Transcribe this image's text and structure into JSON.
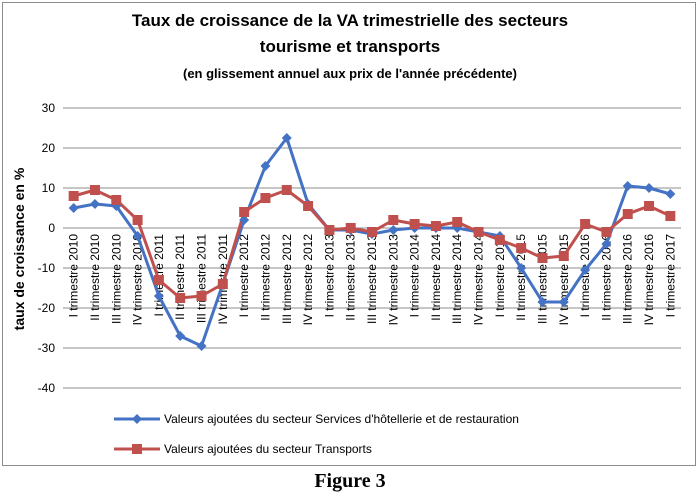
{
  "caption": "Figure 3",
  "chart_data": {
    "type": "line",
    "title": "Taux de croissance de la VA trimestrielle des secteurs",
    "title_line2": "tourisme et transports",
    "subtitle": "(en glissement annuel aux prix de l'année précédente)",
    "xlabel": "",
    "ylabel": "taux de croissance en %",
    "ylim": [
      -40,
      30
    ],
    "yticks": [
      30,
      20,
      10,
      0,
      -10,
      -20,
      -30,
      -40
    ],
    "grid": true,
    "legend_position": "bottom",
    "categories": [
      "I trimestre 2010",
      "II trimestre 2010",
      "III trimestre 2010",
      "IV trimestre 2010",
      "I trimestre 2011",
      "II trimestre 2011",
      "III trimestre 2011",
      "IV trimestre 2011",
      "I trimestre 2012",
      "II trimestre 2012",
      "III trimestre 2012",
      "IV trimestre 2012",
      "I trimestre 2013",
      "II trimestre 2013",
      "III trimestre 2013",
      "IV trimestre 2013",
      "I trimestre 2014",
      "II trimestre 2014",
      "III trimestre 2014",
      "IV trimestre 2014",
      "I trimestre 2015",
      "II trimestre 2015",
      "III trimestre 2015",
      "IV trimestre 2015",
      "I trimestre 2016",
      "II trimestre 2016",
      "III trimestre 2016",
      "IV trimestre 2016",
      "I trimestre 2017"
    ],
    "series": [
      {
        "name": "Valeurs ajoutées du secteur Services d'hôtellerie et de restauration",
        "color": "#4472C4",
        "marker": "diamond",
        "values": [
          5,
          6,
          5.5,
          -2,
          -17,
          -27,
          -29.5,
          -14,
          2,
          15.5,
          22.5,
          6,
          -0.5,
          -0.5,
          -1.5,
          -0.5,
          0,
          0,
          0,
          -1,
          -2,
          -10,
          -18.5,
          -18.5,
          -10.5,
          -4,
          10.5,
          10,
          8.5
        ]
      },
      {
        "name": "Valeurs ajoutées du secteur Transports",
        "color": "#C0504D",
        "marker": "square",
        "values": [
          8,
          9.5,
          7,
          2,
          -13,
          -17.5,
          -17,
          -14,
          4,
          7.5,
          9.5,
          5.5,
          -0.5,
          0,
          -1,
          2,
          1,
          0.5,
          1.5,
          -1,
          -3,
          -5,
          -7.5,
          -7,
          1,
          -1,
          3.5,
          5.5,
          3
        ]
      }
    ]
  }
}
